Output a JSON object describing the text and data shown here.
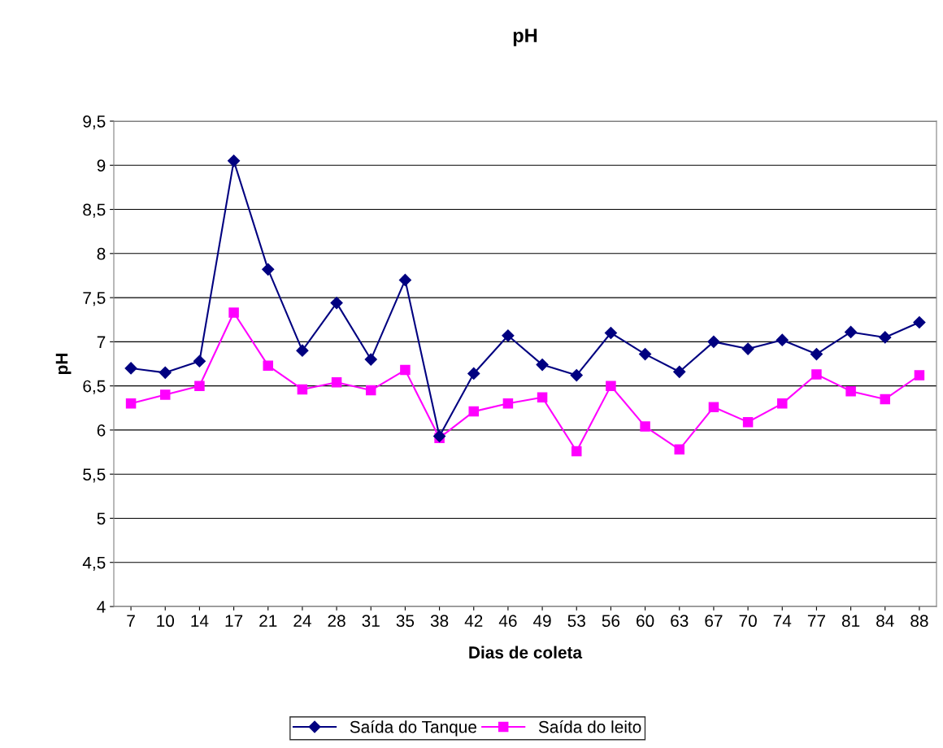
{
  "chart_data": {
    "type": "line",
    "title": "pH",
    "xlabel": "Dias de coleta",
    "ylabel": "pH",
    "categories": [
      "7",
      "10",
      "14",
      "17",
      "21",
      "24",
      "28",
      "31",
      "35",
      "38",
      "42",
      "46",
      "49",
      "53",
      "56",
      "60",
      "63",
      "67",
      "70",
      "74",
      "77",
      "81",
      "84",
      "88"
    ],
    "series": [
      {
        "name": "Saída do Tanque",
        "color": "#000080",
        "marker": "diamond",
        "values": [
          6.7,
          6.65,
          6.78,
          9.05,
          7.82,
          6.9,
          7.44,
          6.8,
          7.7,
          5.93,
          6.64,
          7.07,
          6.74,
          6.62,
          7.1,
          6.86,
          6.66,
          7.0,
          6.92,
          7.02,
          6.86,
          7.11,
          7.05,
          7.22
        ]
      },
      {
        "name": "Saída do leito",
        "color": "#ff00ff",
        "marker": "square",
        "values": [
          6.3,
          6.4,
          6.5,
          7.33,
          6.73,
          6.46,
          6.54,
          6.45,
          6.68,
          5.91,
          6.21,
          6.3,
          6.37,
          5.76,
          6.5,
          6.04,
          5.78,
          6.26,
          6.09,
          6.3,
          6.63,
          6.44,
          6.35,
          6.62
        ]
      }
    ],
    "ylim": [
      4,
      9.5
    ],
    "yticks": [
      4,
      {
        "value": 4.5,
        "label": "4,5"
      },
      5,
      {
        "value": 5.5,
        "label": "5,5"
      },
      6,
      {
        "value": 6.5,
        "label": "6,5"
      },
      7,
      {
        "value": 7.5,
        "label": "7,5"
      },
      8,
      {
        "value": 8.5,
        "label": "8,5"
      },
      9,
      {
        "value": 9.5,
        "label": "9,5"
      }
    ],
    "grid": "y",
    "legend": "bottom",
    "line_style": "solid"
  }
}
